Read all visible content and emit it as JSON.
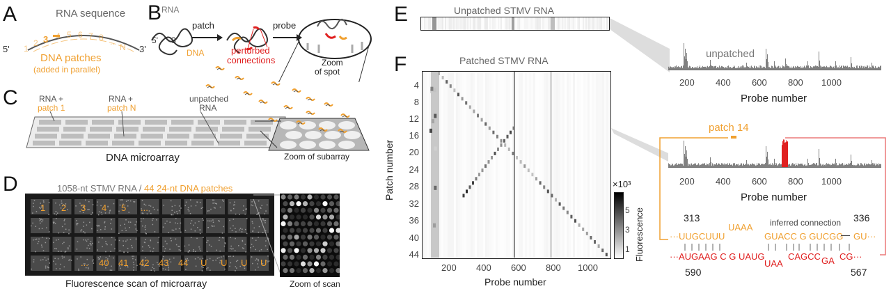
{
  "panels": {
    "A": "A",
    "B": "B",
    "C": "C",
    "D": "D",
    "E": "E",
    "F": "F"
  },
  "colors": {
    "orange": "#f0a030",
    "red": "#e02020",
    "gray": "#808080",
    "dark": "#222222"
  },
  "A": {
    "rna_sequence": "RNA sequence",
    "end5": "5'",
    "end3": "3'",
    "patch_numbers": [
      "1",
      "2",
      "3",
      "4",
      "5",
      "6",
      "7",
      "8",
      "..",
      "N"
    ],
    "dna_patches": "DNA patches",
    "added_in_parallel": "(added in parallel)"
  },
  "B": {
    "rna": "RNA",
    "end5": "5'",
    "end3": "3'",
    "patch": "patch",
    "probe": "probe",
    "dna": "DNA",
    "perturbed": "perturbed",
    "connections": "connections",
    "zoom": "Zoom",
    "of_spot": "of spot"
  },
  "C": {
    "rna_plus_1": "RNA +",
    "patch_1": "patch 1",
    "rna_plus_n": "RNA +",
    "patch_n": "patch N",
    "unpatched": "unpatched",
    "unpatched_rna": "RNA",
    "dna_microarray": "DNA microarray",
    "zoom_subarray": "Zoom of subarray"
  },
  "D": {
    "title_gray": "1058-nt STMV RNA /",
    "title_orange": "44 24-nt DNA patches",
    "row1": [
      "1",
      "2",
      "3",
      "4",
      "5",
      "..."
    ],
    "row4": [
      "...",
      "40",
      "41",
      "42",
      "43",
      "44",
      "U",
      "U",
      "U",
      "U"
    ],
    "caption": "Fluorescence scan of microarray",
    "zoom_caption": "Zoom of scan"
  },
  "E": {
    "title": "Unpatched STMV RNA"
  },
  "F": {
    "title": "Patched STMV RNA",
    "ylabel": "Patch number",
    "xlabel": "Probe number",
    "yticks": [
      "4",
      "8",
      "12",
      "16",
      "20",
      "24",
      "28",
      "32",
      "36",
      "40",
      "44"
    ],
    "xticks": [
      "200",
      "400",
      "600",
      "800",
      "1000"
    ],
    "colorbar_exp": "×10³",
    "colorbar_ticks": [
      "5",
      "3",
      "1"
    ],
    "colorbar_label": "Fluorescence"
  },
  "right": {
    "unpatched": "unpatched",
    "patch14": "patch 14",
    "xlabel": "Probe number",
    "xticks": [
      "200",
      "400",
      "600",
      "800",
      "1000"
    ],
    "inferred": "inferred connection",
    "n313": "313",
    "n336": "336",
    "n590": "590",
    "n567": "567",
    "top_seq": [
      {
        "t": "···UUGCUUU",
        "c": "orange"
      },
      {
        "t": "UAAA",
        "c": "orange"
      },
      {
        "t": "GUACC G GUCGG",
        "c": "orange"
      },
      {
        "t": "—",
        "c": "dark"
      },
      {
        "t": "GU···",
        "c": "orange"
      }
    ],
    "bottom_seq": [
      {
        "t": "···AUGAAG C G UAUG",
        "c": "red"
      },
      {
        "t": "UAA",
        "c": "red"
      },
      {
        "t": "CAGCC",
        "c": "red"
      },
      {
        "t": "GA",
        "c": "red"
      },
      {
        "t": "CG···",
        "c": "red"
      }
    ]
  }
}
